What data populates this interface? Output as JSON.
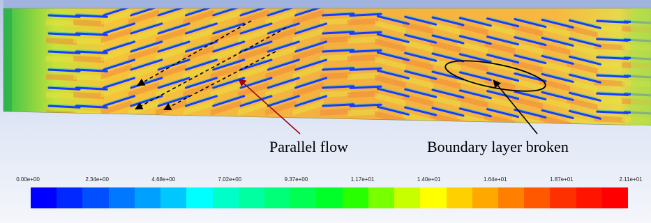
{
  "annotations": {
    "parallel_flow": "Parallel flow",
    "boundary_layer": "Boundary layer broken"
  },
  "colorbar": {
    "ticks": [
      "0.00e+00",
      "2.34e+00",
      "4.68e+00",
      "7.02e+00",
      "9.37e+00",
      "1.17e+01",
      "1.40e+01",
      "1.64e+01",
      "1.87e+01",
      "2.11e+01"
    ],
    "colors": [
      "#0000ff",
      "#0028ff",
      "#0050ff",
      "#0078ff",
      "#00a0ff",
      "#00c8ff",
      "#00ffff",
      "#00ffc8",
      "#00ffa0",
      "#00ff78",
      "#00ff50",
      "#00ff28",
      "#28ff00",
      "#78ff00",
      "#c8ff00",
      "#ffff00",
      "#ffd000",
      "#ffa800",
      "#ff8000",
      "#ff5800",
      "#ff3000",
      "#ff1400",
      "#ff0000"
    ]
  },
  "contour": {
    "fin_color": "#1a3aff",
    "arrow_color": "#a00010",
    "streamline_color": "#000000"
  }
}
